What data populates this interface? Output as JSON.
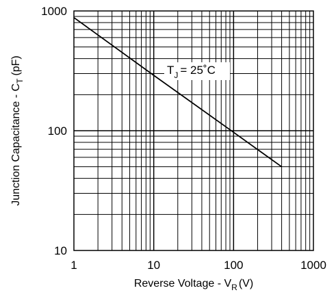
{
  "chart_data": {
    "type": "line",
    "x_scale": "log",
    "y_scale": "log",
    "xlim": [
      1,
      1000
    ],
    "ylim": [
      10,
      1000
    ],
    "grid": true,
    "x_ticks": [
      "1",
      "10",
      "100",
      "1000"
    ],
    "y_ticks": [
      "10",
      "100",
      "1000"
    ],
    "xlabel": {
      "main": "Reverse Voltage - V",
      "sub": "R",
      "tail": "(V)"
    },
    "ylabel": {
      "main": "Junction Capacitance - C",
      "sub": "T",
      "tail": "(pF)"
    },
    "annotation": {
      "main": "T",
      "sub": "J",
      "tail": "= 25˚C"
    },
    "series": [
      {
        "x": [
          1,
          10,
          100,
          400
        ],
        "y": [
          880,
          290,
          97,
          50
        ]
      }
    ]
  }
}
